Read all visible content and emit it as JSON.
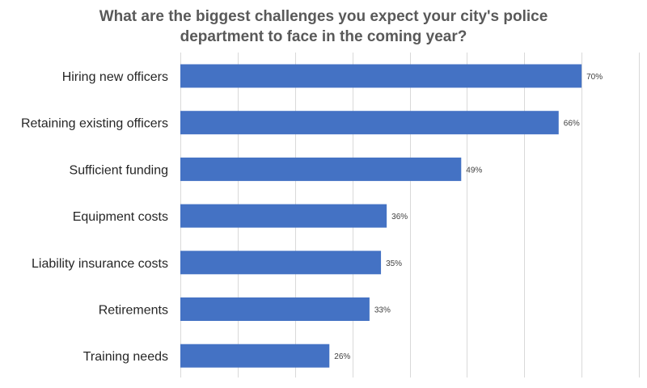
{
  "chart_data": {
    "type": "bar",
    "orientation": "horizontal",
    "title_lines": [
      "What are the biggest challenges you expect your city's police",
      "department to face in the coming year?"
    ],
    "categories": [
      "Hiring new officers",
      "Retaining existing officers",
      "Sufficient funding",
      "Equipment costs",
      "Liability insurance costs",
      "Retirements",
      "Training needs"
    ],
    "values": [
      70,
      66,
      49,
      36,
      35,
      33,
      26
    ],
    "value_labels": [
      "70%",
      "66%",
      "49%",
      "36%",
      "35%",
      "33%",
      "26%"
    ],
    "xlim": [
      0,
      80
    ],
    "grid": "vertical",
    "legend": "none",
    "bar_color": "#4472C4",
    "grid_color": "#D9D9D9"
  }
}
